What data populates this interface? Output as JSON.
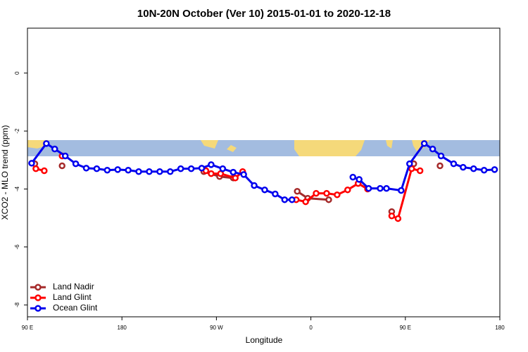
{
  "chart_data": {
    "type": "line",
    "title": "10N-20N October (Ver 10)   2015-01-01 to 2020-12-18",
    "x_label": "Longitude",
    "y_label": "XCO2 - MLO trend (ppm)",
    "xlim": [
      90,
      540
    ],
    "xticks": [
      {
        "value": 90,
        "label": "90 E"
      },
      180,
      {
        "value": 270,
        "label": "90 W"
      },
      {
        "value": 360,
        "label": "0"
      },
      {
        "value": 450,
        "label": "90 E"
      },
      {
        "value": 540,
        "label": "180"
      }
    ],
    "ylim": [
      -8.41,
      1.55
    ],
    "yticks": [
      0,
      -2,
      -4,
      -6,
      -8
    ],
    "legend": "bottom-left",
    "series": [
      {
        "name": "Land Nadir",
        "color": "#a52a2a",
        "x": [
          97,
          null,
          123,
          null,
          258,
          273,
          286,
          null,
          347,
          357,
          377,
          null,
          437,
          null,
          458,
          null,
          483
        ],
        "values": [
          -3.13,
          null,
          -3.2,
          null,
          -3.4,
          -3.57,
          -3.62,
          null,
          -4.08,
          -4.32,
          -4.37,
          null,
          -4.78,
          null,
          -3.13,
          null,
          -3.2
        ]
      },
      {
        "name": "Land Glint",
        "color": "#ff0000",
        "x": [
          98,
          106,
          null,
          123,
          null,
          260,
          265,
          274,
          288,
          295,
          null,
          346,
          355,
          365,
          375,
          385,
          395,
          405,
          414,
          null,
          437,
          443,
          456,
          464
        ],
        "values": [
          -3.3,
          -3.37,
          null,
          -2.86,
          null,
          -3.37,
          -3.47,
          -3.47,
          -3.62,
          -3.4,
          null,
          -4.37,
          -4.44,
          -4.15,
          -4.15,
          -4.2,
          -4.03,
          -3.81,
          -4.0,
          null,
          -4.93,
          -5.02,
          -3.3,
          -3.37
        ]
      },
      {
        "name": "Ocean Glint",
        "color": "#0000ee",
        "x": [
          94,
          108,
          116,
          126,
          136,
          146,
          156,
          166,
          176,
          186,
          196,
          206,
          216,
          226,
          236,
          246,
          256,
          265,
          276,
          286,
          296,
          306,
          316,
          326,
          335,
          342,
          null,
          400,
          406,
          415,
          426,
          432,
          446,
          454,
          468,
          476,
          484,
          496,
          505,
          515,
          525,
          535
        ],
        "values": [
          -3.11,
          -2.43,
          -2.62,
          -2.86,
          -3.13,
          -3.28,
          -3.3,
          -3.35,
          -3.33,
          -3.35,
          -3.4,
          -3.4,
          -3.4,
          -3.4,
          -3.3,
          -3.3,
          -3.28,
          -3.16,
          -3.3,
          -3.42,
          -3.5,
          -3.88,
          -4.03,
          -4.17,
          -4.37,
          -4.37,
          null,
          -3.59,
          -3.67,
          -3.98,
          -3.98,
          -3.98,
          -4.05,
          -3.13,
          -2.43,
          -2.62,
          -2.86,
          -3.13,
          -3.25,
          -3.3,
          -3.35,
          -3.33
        ]
      }
    ]
  }
}
